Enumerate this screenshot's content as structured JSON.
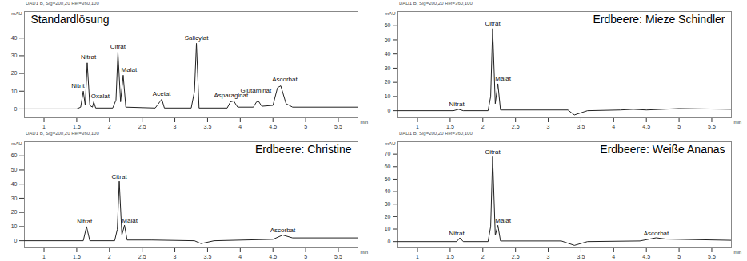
{
  "chart_data": [
    {
      "type": "line",
      "title": "Standardlösung",
      "subtitle": "DAD1 B, Sig=200,20 Ref=360,100",
      "xlabel": "min",
      "ylabel": "mAU",
      "color": "#222222",
      "grid": false,
      "xlim": [
        0.7,
        5.8
      ],
      "xticks": [
        1,
        1.5,
        2,
        2.5,
        3,
        3.5,
        4,
        4.5,
        5,
        5.5
      ],
      "ylim": [
        -5,
        55
      ],
      "yticks": [
        0,
        10,
        20,
        30,
        40
      ],
      "x": [
        0.7,
        1.5,
        1.56,
        1.6,
        1.63,
        1.66,
        1.7,
        1.74,
        1.76,
        1.79,
        2.05,
        2.1,
        2.13,
        2.17,
        2.21,
        2.25,
        2.7,
        2.77,
        2.8,
        2.84,
        3.25,
        3.3,
        3.33,
        3.37,
        3.8,
        3.85,
        3.9,
        3.96,
        4.2,
        4.25,
        4.28,
        4.33,
        4.5,
        4.57,
        4.62,
        4.7,
        4.8,
        5.0,
        5.8
      ],
      "values": [
        0,
        0,
        1,
        10,
        2,
        26,
        2,
        1,
        4,
        0.5,
        0.5,
        5,
        32,
        4,
        19,
        1,
        0.5,
        4,
        5.5,
        0.5,
        0.5,
        10,
        37,
        0.5,
        0.5,
        4,
        4.5,
        1,
        1,
        4,
        4.3,
        1.5,
        2,
        12,
        13,
        3,
        1,
        1,
        1
      ],
      "annotations": [
        {
          "text": "Nitrit",
          "x": 1.52,
          "y": 12
        },
        {
          "text": "Nitrat",
          "x": 1.68,
          "y": 28
        },
        {
          "text": "Oxalat",
          "x": 1.86,
          "y": 6
        },
        {
          "text": "Citrat",
          "x": 2.13,
          "y": 34
        },
        {
          "text": "Malat",
          "x": 2.3,
          "y": 21
        },
        {
          "text": "Acetat",
          "x": 2.8,
          "y": 7.5
        },
        {
          "text": "Salicylat",
          "x": 3.33,
          "y": 39
        },
        {
          "text": "Asparaginat",
          "x": 3.86,
          "y": 6.5
        },
        {
          "text": "Glutaminat",
          "x": 4.24,
          "y": 9
        },
        {
          "text": "Ascorbat",
          "x": 4.68,
          "y": 15.5
        }
      ]
    },
    {
      "type": "line",
      "title": "Erdbeere: Mieze Schindler",
      "subtitle": "DAD1 B, Sig=200,20 Ref=360,100",
      "xlabel": "min",
      "ylabel": "mAU",
      "color": "#222222",
      "grid": false,
      "xlim": [
        0.7,
        5.8
      ],
      "xticks": [
        1,
        1.5,
        2,
        2.5,
        3,
        3.5,
        4,
        4.5,
        5,
        5.5
      ],
      "ylim": [
        -5,
        70
      ],
      "yticks": [
        0,
        10,
        20,
        30,
        40,
        50,
        60
      ],
      "x": [
        0.7,
        1.55,
        1.63,
        1.7,
        2.08,
        2.12,
        2.15,
        2.19,
        2.23,
        2.27,
        3.3,
        3.4,
        3.6,
        4.1,
        4.3,
        4.5,
        5.0,
        5.8
      ],
      "values": [
        0,
        0,
        1,
        0,
        0,
        10,
        58,
        5,
        19,
        0.5,
        0.5,
        -3,
        0,
        0.5,
        1,
        0.5,
        1.5,
        1
      ],
      "annotations": [
        {
          "text": "Nitrat",
          "x": 1.6,
          "y": 3
        },
        {
          "text": "Citrat",
          "x": 2.15,
          "y": 60
        },
        {
          "text": "Malat",
          "x": 2.31,
          "y": 21
        }
      ]
    },
    {
      "type": "line",
      "title": "Erdbeere: Christine",
      "subtitle": "DAD1 B, Sig=200,20 Ref=360,100",
      "xlabel": "min",
      "ylabel": "mAU",
      "color": "#222222",
      "grid": false,
      "xlim": [
        0.7,
        5.8
      ],
      "xticks": [
        1,
        1.5,
        2,
        2.5,
        3,
        3.5,
        4,
        4.5,
        5,
        5.5
      ],
      "ylim": [
        -5,
        70
      ],
      "yticks": [
        0,
        10,
        20,
        30,
        40,
        50,
        60
      ],
      "x": [
        0.7,
        1.6,
        1.65,
        1.7,
        2.08,
        2.12,
        2.15,
        2.19,
        2.23,
        2.27,
        2.65,
        3.3,
        3.4,
        3.6,
        4.5,
        4.65,
        4.8,
        5.8
      ],
      "values": [
        0,
        0,
        10,
        0,
        0,
        8,
        42,
        4,
        11,
        0.5,
        0.5,
        0,
        -2,
        0,
        1,
        4,
        2,
        2
      ],
      "annotations": [
        {
          "text": "Nitrat",
          "x": 1.62,
          "y": 12
        },
        {
          "text": "Citrat",
          "x": 2.15,
          "y": 44
        },
        {
          "text": "Malat",
          "x": 2.31,
          "y": 13
        },
        {
          "text": "Ascorbat",
          "x": 4.65,
          "y": 6
        }
      ]
    },
    {
      "type": "line",
      "title": "Erdbeere: Weiße Ananas",
      "subtitle": "DAD1 B, Sig=200,20 Ref=360,100",
      "xlabel": "min",
      "ylabel": "mAU",
      "color": "#222222",
      "grid": false,
      "xlim": [
        0.7,
        5.8
      ],
      "xticks": [
        1,
        1.5,
        2,
        2.5,
        3,
        3.5,
        4,
        4.5,
        5,
        5.5
      ],
      "ylim": [
        -5,
        80
      ],
      "yticks": [
        0,
        10,
        20,
        30,
        40,
        50,
        60,
        70
      ],
      "x": [
        0.7,
        1.6,
        1.65,
        1.7,
        2.08,
        2.12,
        2.15,
        2.19,
        2.23,
        2.27,
        3.2,
        3.4,
        3.6,
        4.4,
        4.65,
        4.8,
        5.8
      ],
      "values": [
        0,
        0,
        3,
        0,
        0,
        12,
        68,
        5,
        13,
        0.5,
        0.5,
        -3,
        0,
        0.5,
        3,
        2,
        1
      ],
      "annotations": [
        {
          "text": "Nitrat",
          "x": 1.6,
          "y": 5
        },
        {
          "text": "Citrat",
          "x": 2.15,
          "y": 70
        },
        {
          "text": "Malat",
          "x": 2.31,
          "y": 15
        },
        {
          "text": "Ascorbat",
          "x": 4.65,
          "y": 5
        }
      ]
    }
  ]
}
